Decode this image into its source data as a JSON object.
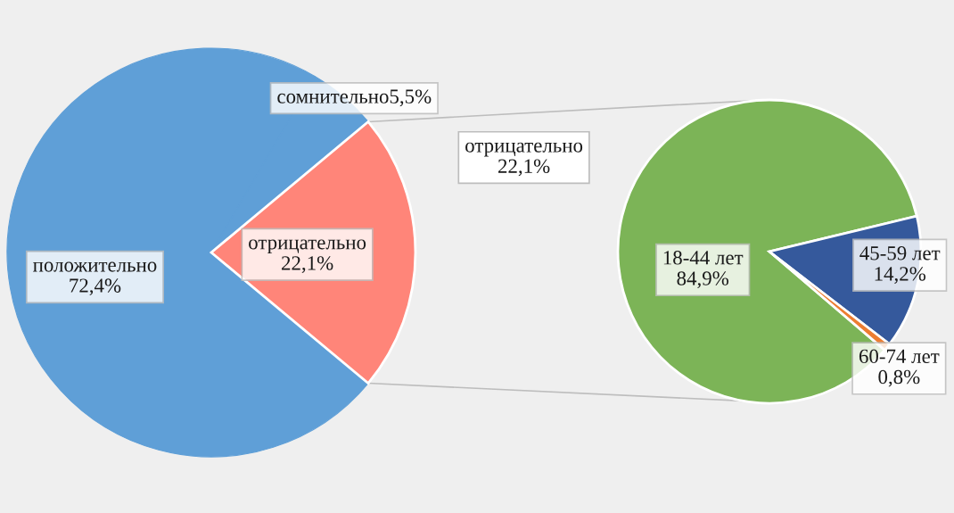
{
  "chart_data": [
    {
      "type": "pie",
      "categories": [
        "положительно",
        "сомнительно",
        "отрицательно"
      ],
      "values": [
        72.4,
        5.5,
        22.1
      ],
      "colors": [
        "#5f9fd7",
        "#5f9fd7",
        "#ff8579"
      ],
      "value_labels": [
        "72,4%",
        "5,5%",
        "22,1%"
      ]
    },
    {
      "type": "pie",
      "categories": [
        "18-44 лет",
        "45-59 лет",
        "60-74 лет"
      ],
      "values": [
        84.9,
        14.2,
        0.8
      ],
      "colors": [
        "#7cb457",
        "#35599c",
        "#ed7d31"
      ],
      "value_labels": [
        "84,9%",
        "14,2%",
        "0,8%"
      ],
      "annotations": [
        "отрицательно\n22,1%"
      ]
    }
  ]
}
